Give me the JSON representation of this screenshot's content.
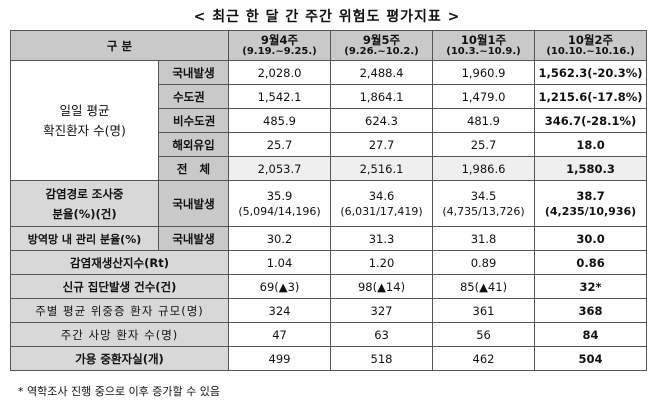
{
  "title": "< 최근 한 달 간 주간 위험도 평가지표 >",
  "header": {
    "category": "구 분",
    "weeks": [
      {
        "label": "9월4주",
        "range": "(9.19.~9.25.)"
      },
      {
        "label": "9월5주",
        "range": "(9.26.~10.2.)"
      },
      {
        "label": "10월1주",
        "range": "(10.3.~10.9.)"
      },
      {
        "label": "10월2주",
        "range": "(10.10.~10.16.)"
      }
    ]
  },
  "group_daily": "일일 평균\n확진환자 수(명)",
  "rows": {
    "domestic": {
      "label": "국내발생",
      "values": [
        "2,028.0",
        "2,488.4",
        "1,960.9",
        "1,562.3(-20.3%)"
      ]
    },
    "capital": {
      "label": "수도권",
      "values": [
        "1,542.1",
        "1,864.1",
        "1,479.0",
        "1,215.6(-17.8%)"
      ]
    },
    "noncapital": {
      "label": "비수도권",
      "values": [
        "485.9",
        "624.3",
        "481.9",
        "346.7(-28.1%)"
      ]
    },
    "overseas": {
      "label": "해외유입",
      "values": [
        "25.7",
        "27.7",
        "25.7",
        "18.0"
      ]
    },
    "total": {
      "label": "전 체",
      "values": [
        "2,053.7",
        "2,516.1",
        "1,986.6",
        "1,580.3"
      ]
    },
    "route": {
      "label": "감염경로 조사중\n분율(%)(건)",
      "sub": "국내발생",
      "values": [
        {
          "pct": "35.9",
          "cnt": "(5,094/14,196)"
        },
        {
          "pct": "34.6",
          "cnt": "(6,031/17,419)"
        },
        {
          "pct": "34.5",
          "cnt": "(4,735/13,726)"
        },
        {
          "pct": "38.7",
          "cnt": "(4,235/10,936)"
        }
      ]
    },
    "managed": {
      "label": "방역망 내 관리 분율(%)",
      "sub": "국내발생",
      "values": [
        "30.2",
        "31.3",
        "31.8",
        "30.0"
      ]
    },
    "rt": {
      "label": "감염재생산지수(Rt)",
      "values": [
        "1.04",
        "1.20",
        "0.89",
        "0.86"
      ]
    },
    "cluster": {
      "label": "신규 집단발생 건수(건)",
      "values": [
        "69(▲3)",
        "98(▲14)",
        "85(▲41)",
        "32*"
      ]
    },
    "severe": {
      "label": "주별 평균 위중증 환자 규모(명)",
      "values": [
        "324",
        "327",
        "361",
        "368"
      ]
    },
    "deaths": {
      "label": "주간 사망 환자 수(명)",
      "values": [
        "47",
        "63",
        "56",
        "84"
      ]
    },
    "beds": {
      "label": "가용 중환자실(개)",
      "values": [
        "499",
        "518",
        "462",
        "504"
      ]
    }
  },
  "footnote": "* 역학조사 진행 중으로 이후 증가할 수 있음"
}
